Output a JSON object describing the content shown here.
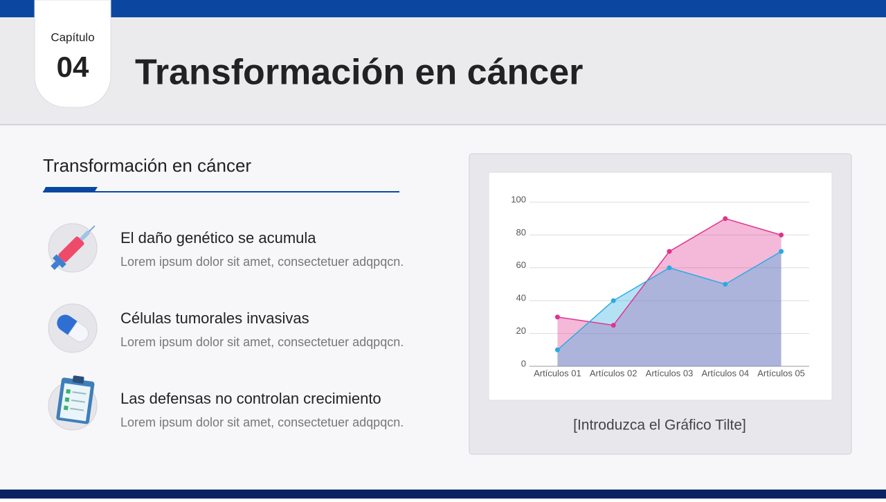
{
  "header": {
    "chapter_label": "Capítulo",
    "chapter_number": "04",
    "title": "Transformación en cáncer"
  },
  "section": {
    "title": "Transformación en cáncer",
    "items": [
      {
        "title": "El daño genético se acumula",
        "text": "Lorem ipsum dolor sit amet, consectetuer adqpqcn."
      },
      {
        "title": "Células tumorales invasivas",
        "text": "Lorem ipsum dolor sit amet, consectetuer adqpqcn."
      },
      {
        "title": "Las defensas no controlan crecimiento",
        "text": "Lorem ipsum dolor sit amet, consectetuer adqpqcn."
      }
    ]
  },
  "chart_data": {
    "type": "area",
    "title": "[Introduzca el Gráfico Tilte]",
    "categories": [
      "Artículos 01",
      "Artículos 02",
      "Artículos 03",
      "Artículos 04",
      "Artículos 05"
    ],
    "series": [
      {
        "color": "#e0338f",
        "values": [
          30,
          25,
          70,
          90,
          80
        ]
      },
      {
        "color": "#29abe2",
        "values": [
          10,
          40,
          60,
          50,
          70
        ]
      }
    ],
    "ylim": [
      0,
      100
    ],
    "yticks": [
      0,
      20,
      40,
      60,
      80,
      100
    ],
    "grid": true
  }
}
